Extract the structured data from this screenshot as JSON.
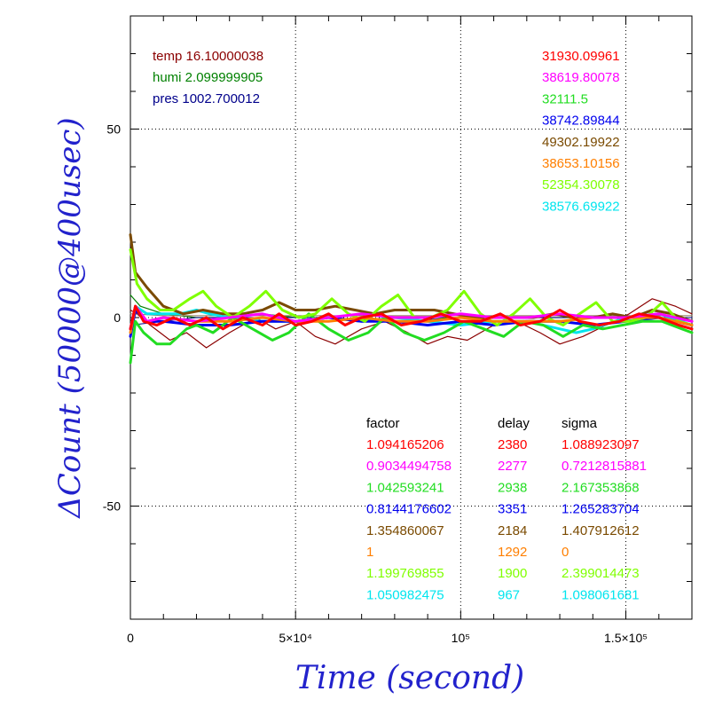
{
  "chart_data": {
    "type": "line",
    "xlabel": "Time (second)",
    "ylabel": "ΔCount (50000@400usec)",
    "xlim": [
      0,
      170000
    ],
    "ylim": [
      -80,
      80
    ],
    "grid": true,
    "x_ticks": [
      {
        "value": 0,
        "label": "0"
      },
      {
        "value": 50000,
        "label": "5×10⁴"
      },
      {
        "value": 100000,
        "label": "10⁵"
      },
      {
        "value": 150000,
        "label": "1.5×10⁵"
      }
    ],
    "y_ticks": [
      {
        "value": -50,
        "label": "-50"
      },
      {
        "value": 0,
        "label": "0"
      },
      {
        "value": 50,
        "label": "50"
      }
    ],
    "env": [
      {
        "label": "temp 16.10000038",
        "color": "#8b0000"
      },
      {
        "label": "humi 2.099999905",
        "color": "#008000"
      },
      {
        "label": "pres 1002.700012",
        "color": "#00008b"
      }
    ],
    "baselines": [
      {
        "value": "31930.09961",
        "color": "#ff0000"
      },
      {
        "value": "38619.80078",
        "color": "#ff00ff"
      },
      {
        "value": "32111.5",
        "color": "#22dd22"
      },
      {
        "value": "38742.89844",
        "color": "#0000ee"
      },
      {
        "value": "49302.19922",
        "color": "#7a4a00"
      },
      {
        "value": "38653.10156",
        "color": "#ff7f00"
      },
      {
        "value": "52354.30078",
        "color": "#7fff00"
      },
      {
        "value": "38576.69922",
        "color": "#00e5ee"
      }
    ],
    "table": {
      "headers": [
        "factor",
        "delay",
        "sigma"
      ],
      "rows": [
        {
          "factor": "1.094165206",
          "delay": "2380",
          "sigma": "1.088923097",
          "color": "#ff0000"
        },
        {
          "factor": "0.9034494758",
          "delay": "2277",
          "sigma": "0.7212815881",
          "color": "#ff00ff"
        },
        {
          "factor": "1.042593241",
          "delay": "2938",
          "sigma": "2.167353868",
          "color": "#22dd22"
        },
        {
          "factor": "0.8144176602",
          "delay": "3351",
          "sigma": "1.265283704",
          "color": "#0000ee"
        },
        {
          "factor": "1.354860067",
          "delay": "2184",
          "sigma": "1.407912612",
          "color": "#7a4a00"
        },
        {
          "factor": "1",
          "delay": "1292",
          "sigma": "0",
          "color": "#ff7f00"
        },
        {
          "factor": "1.199769855",
          "delay": "1900",
          "sigma": "2.399014473",
          "color": "#7fff00"
        },
        {
          "factor": "1.050982475",
          "delay": "967",
          "sigma": "1.098061681",
          "color": "#00e5ee"
        }
      ]
    },
    "series": [
      {
        "color": "#8b0000",
        "width": 1.2,
        "x": [
          0,
          2000,
          6000,
          12000,
          17000,
          23000,
          30000,
          38000,
          44000,
          50000,
          56000,
          62000,
          70000,
          77000,
          84000,
          90000,
          96000,
          102000,
          110000,
          117000,
          124000,
          130000,
          137000,
          144000,
          151000,
          158000,
          165000,
          170000
        ],
        "y": [
          2,
          1,
          -2,
          -6,
          -4,
          -8,
          -4,
          0,
          -3,
          -1,
          -5,
          -7,
          -3,
          -1,
          -4,
          -7,
          -5,
          -6,
          -2,
          -1,
          -4,
          -7,
          -5,
          -2,
          1,
          5,
          3,
          1
        ]
      },
      {
        "color": "#008000",
        "width": 1.2,
        "x": [
          0,
          3000,
          10000,
          20000,
          30000,
          40000,
          50000,
          60000,
          70000,
          80000,
          90000,
          100000,
          110000,
          120000,
          130000,
          140000,
          150000,
          160000,
          170000
        ],
        "y": [
          6,
          3,
          1,
          0,
          0,
          1,
          0,
          0,
          1,
          0,
          0,
          0,
          0,
          0,
          0,
          0,
          0,
          0,
          -1
        ]
      },
      {
        "color": "#00008b",
        "width": 1.0,
        "x": [
          0,
          10000,
          20000,
          40000,
          60000,
          80000,
          100000,
          120000,
          140000,
          160000,
          170000
        ],
        "y": [
          -2,
          -1,
          0,
          0,
          0,
          -1,
          0,
          0,
          0,
          0,
          0
        ]
      },
      {
        "color": "#8b7355",
        "width": 1.0,
        "x": [
          0,
          10000,
          20000,
          40000,
          60000,
          80000,
          100000,
          120000,
          140000,
          160000,
          170000
        ],
        "y": [
          1,
          0.5,
          0.5,
          0.5,
          0.5,
          0.5,
          0.5,
          0.5,
          0.5,
          0.5,
          0.5
        ]
      },
      {
        "color": "#00e5ee",
        "width": 3,
        "x": [
          0,
          1500,
          5000,
          10000,
          15000,
          20000,
          24000,
          30000,
          40000,
          50000,
          60000,
          70000,
          80000,
          90000,
          100000,
          110000,
          120000,
          130000,
          135000,
          140000,
          150000,
          160000,
          170000
        ],
        "y": [
          -3,
          3,
          1,
          1,
          1,
          2,
          1,
          0,
          -1,
          -1,
          0,
          -1,
          0,
          -1,
          -2,
          -1,
          -1,
          -3,
          -4,
          -3,
          0,
          1,
          -2
        ]
      },
      {
        "color": "#0000ee",
        "width": 3,
        "x": [
          0,
          1500,
          5000,
          10000,
          20000,
          30000,
          40000,
          50000,
          60000,
          70000,
          80000,
          90000,
          100000,
          110000,
          120000,
          130000,
          140000,
          150000,
          160000,
          170000
        ],
        "y": [
          -5,
          2,
          -1,
          -1,
          -2,
          -2,
          -1,
          -1,
          0,
          -1,
          -1,
          -2,
          -1,
          -2,
          -1,
          -1,
          -2,
          -1,
          0,
          -2
        ]
      },
      {
        "color": "#22dd22",
        "width": 3,
        "x": [
          0,
          1500,
          4000,
          8000,
          12000,
          17000,
          20000,
          25000,
          31000,
          37000,
          43000,
          48000,
          54000,
          60000,
          66000,
          72000,
          77000,
          83000,
          89000,
          95000,
          101000,
          107000,
          113000,
          119000,
          125000,
          131000,
          137000,
          143000,
          149000,
          155000,
          161000,
          167000,
          170000
        ],
        "y": [
          -12,
          -1,
          -4,
          -7,
          -7,
          -3,
          -2,
          -4,
          0,
          -3,
          -6,
          -4,
          1,
          -3,
          -6,
          -4,
          0,
          -4,
          -6,
          -4,
          -1,
          -3,
          -5,
          -1,
          -2,
          -5,
          -2,
          -3,
          -2,
          -1,
          -1,
          -3,
          -4
        ]
      },
      {
        "color": "#7a4a00",
        "width": 3,
        "x": [
          0,
          1500,
          5000,
          10000,
          16000,
          22000,
          28000,
          34000,
          40000,
          45000,
          50000,
          56000,
          62000,
          68000,
          74000,
          80000,
          86000,
          92000,
          98000,
          104000,
          110000,
          116000,
          122000,
          128000,
          134000,
          140000,
          146000,
          152000,
          158000,
          164000,
          170000
        ],
        "y": [
          22,
          12,
          8,
          3,
          1,
          2,
          1,
          1,
          2,
          4,
          2,
          2,
          3,
          2,
          1,
          2,
          2,
          2,
          1,
          0,
          0,
          0,
          0,
          1,
          0,
          0,
          1,
          0,
          2,
          1,
          -1
        ]
      },
      {
        "color": "#7fff00",
        "width": 3,
        "x": [
          0,
          2000,
          5000,
          9000,
          13000,
          18000,
          22000,
          26000,
          31000,
          36000,
          41000,
          46000,
          51000,
          56000,
          61000,
          66000,
          71000,
          76000,
          81000,
          86000,
          91000,
          96000,
          101000,
          106000,
          111000,
          116000,
          121000,
          126000,
          131000,
          136000,
          141000,
          146000,
          151000,
          156000,
          161000,
          166000,
          170000
        ],
        "y": [
          18,
          9,
          5,
          2,
          2,
          5,
          7,
          3,
          0,
          3,
          7,
          2,
          0,
          1,
          5,
          1,
          -1,
          3,
          6,
          0,
          0,
          2,
          7,
          1,
          -2,
          1,
          5,
          0,
          -2,
          1,
          4,
          -1,
          -1,
          0,
          4,
          -1,
          -2
        ]
      },
      {
        "color": "#ff7f00",
        "width": 3,
        "x": [
          0,
          1500,
          5000,
          10000,
          20000,
          30000,
          40000,
          50000,
          60000,
          70000,
          80000,
          90000,
          100000,
          110000,
          120000,
          130000,
          140000,
          150000,
          160000,
          170000
        ],
        "y": [
          -4,
          3,
          -1,
          0,
          -1,
          -1,
          0,
          -1,
          -1,
          0,
          -1,
          -1,
          0,
          -1,
          -1,
          -1,
          0,
          0,
          0,
          -2
        ]
      },
      {
        "color": "#ff00ff",
        "width": 3,
        "x": [
          0,
          1500,
          5000,
          10000,
          20000,
          30000,
          40000,
          50000,
          60000,
          70000,
          80000,
          90000,
          100000,
          110000,
          120000,
          130000,
          140000,
          150000,
          160000,
          170000
        ],
        "y": [
          -3,
          3,
          -1,
          0,
          -1,
          0,
          1,
          -1,
          0,
          1,
          0,
          0,
          1,
          0,
          0,
          1,
          0,
          0,
          1,
          -1
        ]
      },
      {
        "color": "#ff0000",
        "width": 3,
        "x": [
          0,
          1500,
          4000,
          8000,
          13000,
          18000,
          23000,
          28000,
          34000,
          40000,
          45000,
          50000,
          55000,
          60000,
          65000,
          70000,
          76000,
          82000,
          88000,
          94000,
          100000,
          106000,
          112000,
          118000,
          124000,
          130000,
          136000,
          142000,
          148000,
          154000,
          160000,
          166000,
          170000
        ],
        "y": [
          -3,
          3,
          -1,
          -2,
          0,
          -2,
          0,
          -3,
          0,
          -2,
          1,
          -2,
          -1,
          1,
          -2,
          0,
          1,
          -2,
          -1,
          1,
          -1,
          -1,
          1,
          -2,
          -1,
          2,
          -1,
          -2,
          -1,
          1,
          0,
          -2,
          -3
        ]
      }
    ]
  }
}
